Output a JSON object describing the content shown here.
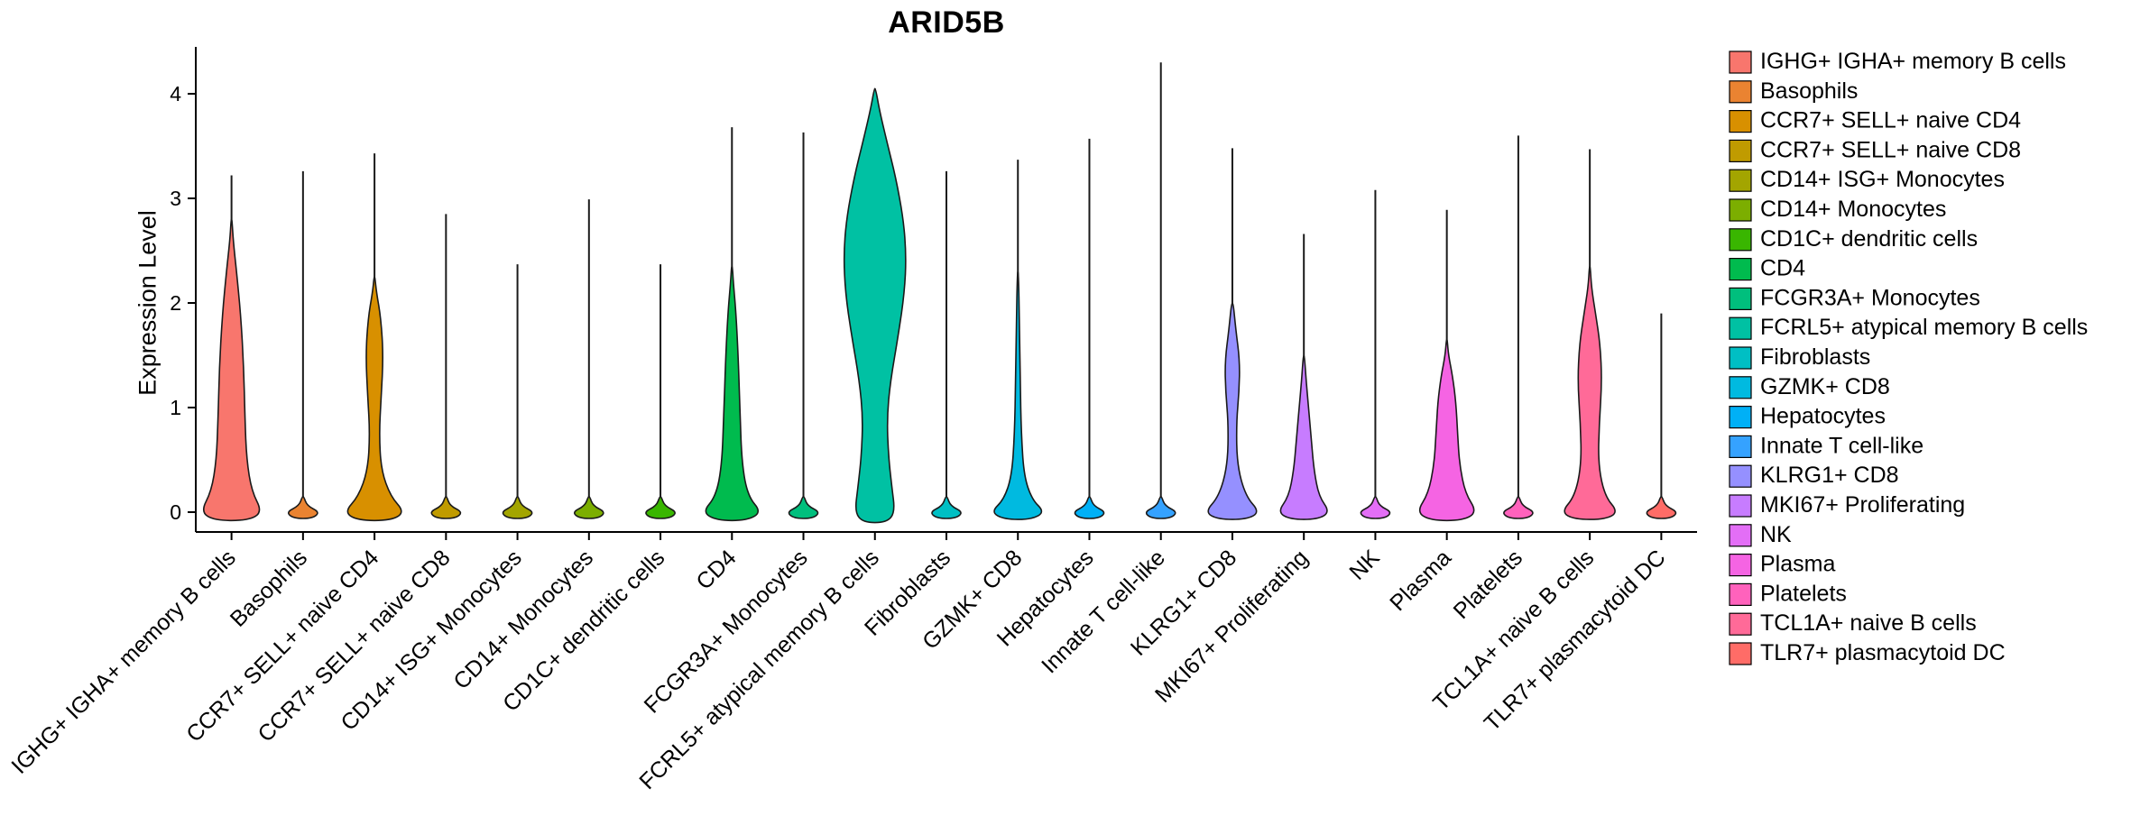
{
  "chart_data": {
    "type": "violin",
    "title": "ARID5B",
    "ylabel": "Expression Level",
    "xlabel": "",
    "yticks": [
      0,
      1,
      2,
      3,
      4
    ],
    "ylim": [
      -0.15,
      4.45
    ],
    "grid": false,
    "legend_position": "right",
    "categories": [
      {
        "label": "IGHG+ IGHA+ memory B cells",
        "color": "#F8766D",
        "max": 3.22,
        "profile": [
          [
            -0.08,
            0.5
          ],
          [
            0,
            0.92
          ],
          [
            0.2,
            0.6
          ],
          [
            0.5,
            0.45
          ],
          [
            0.9,
            0.4
          ],
          [
            1.4,
            0.36
          ],
          [
            1.9,
            0.27
          ],
          [
            2.3,
            0.15
          ],
          [
            2.6,
            0.05
          ],
          [
            2.8,
            0.012
          ]
        ]
      },
      {
        "label": "Basophils",
        "color": "#EA8331",
        "max": 3.26,
        "profile": [
          [
            -0.06,
            0.28
          ],
          [
            0,
            0.5
          ],
          [
            0.06,
            0.12
          ],
          [
            0.15,
            0.02
          ]
        ]
      },
      {
        "label": "CCR7+ SELL+ naive CD4",
        "color": "#D89000",
        "max": 3.43,
        "profile": [
          [
            -0.08,
            0.5
          ],
          [
            0,
            0.9
          ],
          [
            0.15,
            0.48
          ],
          [
            0.4,
            0.2
          ],
          [
            0.75,
            0.14
          ],
          [
            1.1,
            0.2
          ],
          [
            1.5,
            0.26
          ],
          [
            1.85,
            0.19
          ],
          [
            2.1,
            0.06
          ],
          [
            2.25,
            0.012
          ]
        ]
      },
      {
        "label": "CCR7+ SELL+ naive CD8",
        "color": "#C09B00",
        "max": 2.85,
        "profile": [
          [
            -0.06,
            0.28
          ],
          [
            0,
            0.5
          ],
          [
            0.06,
            0.12
          ],
          [
            0.15,
            0.02
          ]
        ]
      },
      {
        "label": "CD14+ ISG+ Monocytes",
        "color": "#A3A500",
        "max": 2.37,
        "profile": [
          [
            -0.06,
            0.28
          ],
          [
            0,
            0.5
          ],
          [
            0.06,
            0.12
          ],
          [
            0.15,
            0.02
          ]
        ]
      },
      {
        "label": "CD14+ Monocytes",
        "color": "#7CAE00",
        "max": 2.99,
        "profile": [
          [
            -0.06,
            0.28
          ],
          [
            0,
            0.5
          ],
          [
            0.06,
            0.12
          ],
          [
            0.15,
            0.02
          ]
        ]
      },
      {
        "label": "CD1C+ dendritic cells",
        "color": "#39B600",
        "max": 2.37,
        "profile": [
          [
            -0.06,
            0.28
          ],
          [
            0,
            0.5
          ],
          [
            0.06,
            0.12
          ],
          [
            0.15,
            0.02
          ]
        ]
      },
      {
        "label": "CD4",
        "color": "#00BB4E",
        "max": 3.68,
        "profile": [
          [
            -0.08,
            0.45
          ],
          [
            0,
            0.88
          ],
          [
            0.15,
            0.48
          ],
          [
            0.45,
            0.3
          ],
          [
            0.95,
            0.24
          ],
          [
            1.45,
            0.19
          ],
          [
            1.9,
            0.12
          ],
          [
            2.2,
            0.04
          ],
          [
            2.35,
            0.012
          ]
        ]
      },
      {
        "label": "FCGR3A+ Monocytes",
        "color": "#00BF7D",
        "max": 3.63,
        "profile": [
          [
            -0.06,
            0.28
          ],
          [
            0,
            0.5
          ],
          [
            0.06,
            0.12
          ],
          [
            0.15,
            0.02
          ]
        ]
      },
      {
        "label": "FCRL5+ atypical memory B cells",
        "color": "#00C1A3",
        "max": 4.05,
        "profile": [
          [
            -0.1,
            0.35
          ],
          [
            0,
            0.6
          ],
          [
            0.25,
            0.5
          ],
          [
            0.55,
            0.4
          ],
          [
            0.9,
            0.36
          ],
          [
            1.25,
            0.46
          ],
          [
            1.7,
            0.7
          ],
          [
            2.1,
            0.88
          ],
          [
            2.45,
            0.93
          ],
          [
            2.8,
            0.85
          ],
          [
            3.2,
            0.62
          ],
          [
            3.55,
            0.35
          ],
          [
            3.85,
            0.13
          ],
          [
            4.05,
            0.02
          ]
        ]
      },
      {
        "label": "Fibroblasts",
        "color": "#00BFC4",
        "max": 3.26,
        "profile": [
          [
            -0.06,
            0.28
          ],
          [
            0,
            0.5
          ],
          [
            0.06,
            0.12
          ],
          [
            0.15,
            0.02
          ]
        ]
      },
      {
        "label": "GZMK+ CD8",
        "color": "#00BAE0",
        "max": 3.37,
        "profile": [
          [
            -0.07,
            0.4
          ],
          [
            0,
            0.8
          ],
          [
            0.12,
            0.42
          ],
          [
            0.35,
            0.18
          ],
          [
            0.75,
            0.1
          ],
          [
            1.25,
            0.07
          ],
          [
            1.8,
            0.045
          ],
          [
            2.3,
            0.015
          ]
        ]
      },
      {
        "label": "Hepatocytes",
        "color": "#00B0F6",
        "max": 3.57,
        "profile": [
          [
            -0.06,
            0.28
          ],
          [
            0,
            0.5
          ],
          [
            0.06,
            0.12
          ],
          [
            0.15,
            0.02
          ]
        ]
      },
      {
        "label": "Innate T cell-like",
        "color": "#35A2FF",
        "max": 4.3,
        "profile": [
          [
            -0.06,
            0.28
          ],
          [
            0,
            0.5
          ],
          [
            0.06,
            0.12
          ],
          [
            0.15,
            0.02
          ]
        ]
      },
      {
        "label": "KLRG1+ CD8",
        "color": "#9590FF",
        "max": 3.48,
        "profile": [
          [
            -0.07,
            0.42
          ],
          [
            0,
            0.82
          ],
          [
            0.15,
            0.4
          ],
          [
            0.45,
            0.14
          ],
          [
            0.85,
            0.12
          ],
          [
            1.15,
            0.2
          ],
          [
            1.45,
            0.22
          ],
          [
            1.75,
            0.1
          ],
          [
            2.0,
            0.025
          ]
        ]
      },
      {
        "label": "MKI67+ Proliferating",
        "color": "#C77CFF",
        "max": 2.66,
        "profile": [
          [
            -0.07,
            0.4
          ],
          [
            0,
            0.78
          ],
          [
            0.15,
            0.45
          ],
          [
            0.4,
            0.3
          ],
          [
            0.7,
            0.22
          ],
          [
            1.0,
            0.14
          ],
          [
            1.25,
            0.07
          ],
          [
            1.5,
            0.015
          ]
        ]
      },
      {
        "label": "NK",
        "color": "#E36EF6",
        "max": 3.08,
        "profile": [
          [
            -0.06,
            0.28
          ],
          [
            0,
            0.5
          ],
          [
            0.06,
            0.12
          ],
          [
            0.15,
            0.02
          ]
        ]
      },
      {
        "label": "Plasma",
        "color": "#F564E3",
        "max": 2.89,
        "profile": [
          [
            -0.08,
            0.48
          ],
          [
            0,
            0.9
          ],
          [
            0.18,
            0.55
          ],
          [
            0.45,
            0.38
          ],
          [
            0.75,
            0.32
          ],
          [
            1.05,
            0.27
          ],
          [
            1.3,
            0.17
          ],
          [
            1.5,
            0.05
          ],
          [
            1.65,
            0.012
          ]
        ]
      },
      {
        "label": "Platelets",
        "color": "#FF62BC",
        "max": 3.6,
        "profile": [
          [
            -0.06,
            0.28
          ],
          [
            0,
            0.5
          ],
          [
            0.06,
            0.12
          ],
          [
            0.15,
            0.02
          ]
        ]
      },
      {
        "label": "TCL1A+ naive B cells",
        "color": "#FF6A98",
        "max": 3.47,
        "profile": [
          [
            -0.07,
            0.45
          ],
          [
            0,
            0.85
          ],
          [
            0.15,
            0.45
          ],
          [
            0.45,
            0.25
          ],
          [
            0.85,
            0.28
          ],
          [
            1.25,
            0.36
          ],
          [
            1.6,
            0.31
          ],
          [
            1.9,
            0.17
          ],
          [
            2.15,
            0.05
          ],
          [
            2.35,
            0.012
          ]
        ]
      },
      {
        "label": "TLR7+ plasmacytoid DC",
        "color": "#FF6C67",
        "max": 1.9,
        "profile": [
          [
            -0.06,
            0.28
          ],
          [
            0,
            0.5
          ],
          [
            0.06,
            0.12
          ],
          [
            0.15,
            0.02
          ]
        ]
      }
    ],
    "colors": {
      "axis": "#000000",
      "violin_outline": "#1a1a1a",
      "text": "#000000"
    }
  }
}
